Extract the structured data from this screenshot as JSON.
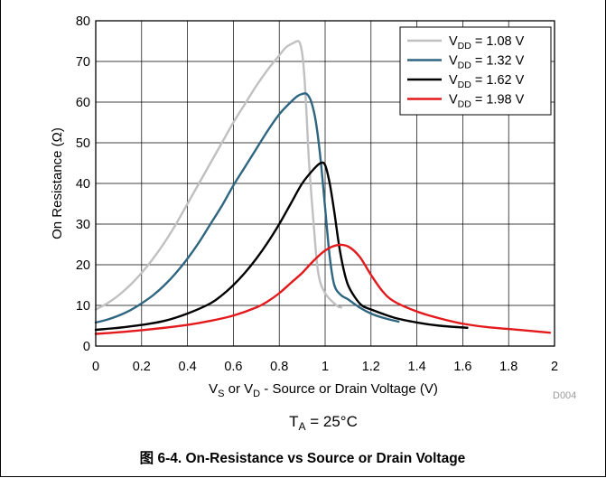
{
  "chart_data": {
    "type": "line",
    "xlabel_parts": [
      "V",
      "S",
      " or V",
      "D",
      " - Source or Drain Voltage (V)"
    ],
    "ylabel": "On Resistance (Ω)",
    "xlim": [
      0,
      2
    ],
    "ylim": [
      0,
      80
    ],
    "xticks": [
      0,
      0.2,
      0.4,
      0.6,
      0.8,
      1,
      1.2,
      1.4,
      1.6,
      1.8,
      2
    ],
    "xtick_labels": [
      "0",
      "0.2",
      "0.4",
      "0.6",
      "0.8",
      "1",
      "1.2",
      "1.4",
      "1.6",
      "1.8",
      "2"
    ],
    "yticks": [
      0,
      10,
      20,
      30,
      40,
      50,
      60,
      70,
      80
    ],
    "ytick_labels": [
      "0",
      "10",
      "20",
      "30",
      "40",
      "50",
      "60",
      "70",
      "80"
    ],
    "grid": true,
    "legend_position": "top-right",
    "figure_code": "D004",
    "condition": {
      "main": "T",
      "sub": "A",
      "rest": " = 25°C"
    },
    "caption": "图 6-4. On-Resistance vs Source or Drain Voltage",
    "series": [
      {
        "legend_main": "V",
        "legend_sub": "DD",
        "legend_rest": " = 1.08 V",
        "color": "#c0c0c0",
        "points": [
          [
            0,
            9
          ],
          [
            0.05,
            10.5
          ],
          [
            0.1,
            12.5
          ],
          [
            0.15,
            15
          ],
          [
            0.2,
            18
          ],
          [
            0.25,
            21.5
          ],
          [
            0.3,
            25.5
          ],
          [
            0.35,
            30
          ],
          [
            0.4,
            35
          ],
          [
            0.45,
            40
          ],
          [
            0.5,
            45
          ],
          [
            0.55,
            50
          ],
          [
            0.6,
            55
          ],
          [
            0.65,
            59.5
          ],
          [
            0.7,
            64
          ],
          [
            0.75,
            68
          ],
          [
            0.8,
            71.5
          ],
          [
            0.83,
            73.5
          ],
          [
            0.86,
            74.5
          ],
          [
            0.88,
            75
          ],
          [
            0.89,
            74.5
          ],
          [
            0.9,
            72
          ],
          [
            0.91,
            66
          ],
          [
            0.92,
            56
          ],
          [
            0.93,
            45
          ],
          [
            0.95,
            30
          ],
          [
            0.97,
            18
          ],
          [
            1.0,
            13
          ],
          [
            1.05,
            10
          ],
          [
            1.07,
            9.5
          ]
        ]
      },
      {
        "legend_main": "V",
        "legend_sub": "DD",
        "legend_rest": " = 1.32 V",
        "color": "#2e6580",
        "points": [
          [
            0,
            5.8
          ],
          [
            0.05,
            6.5
          ],
          [
            0.1,
            7.5
          ],
          [
            0.15,
            8.8
          ],
          [
            0.2,
            10.5
          ],
          [
            0.25,
            12.5
          ],
          [
            0.3,
            15
          ],
          [
            0.35,
            18
          ],
          [
            0.4,
            21.5
          ],
          [
            0.45,
            25.5
          ],
          [
            0.5,
            30
          ],
          [
            0.55,
            34.5
          ],
          [
            0.6,
            39.5
          ],
          [
            0.65,
            44
          ],
          [
            0.7,
            48.5
          ],
          [
            0.75,
            53
          ],
          [
            0.8,
            57
          ],
          [
            0.85,
            60
          ],
          [
            0.88,
            61.5
          ],
          [
            0.9,
            62
          ],
          [
            0.92,
            62
          ],
          [
            0.94,
            60
          ],
          [
            0.96,
            55
          ],
          [
            0.98,
            46
          ],
          [
            1.0,
            34
          ],
          [
            1.02,
            22
          ],
          [
            1.04,
            15
          ],
          [
            1.07,
            12.5
          ],
          [
            1.1,
            11.5
          ],
          [
            1.15,
            9.5
          ],
          [
            1.2,
            8
          ],
          [
            1.25,
            7
          ],
          [
            1.32,
            6
          ]
        ]
      },
      {
        "legend_main": "V",
        "legend_sub": "DD",
        "legend_rest": " = 1.62 V",
        "color": "#000000",
        "points": [
          [
            0,
            4
          ],
          [
            0.1,
            4.5
          ],
          [
            0.2,
            5.2
          ],
          [
            0.3,
            6.2
          ],
          [
            0.4,
            8
          ],
          [
            0.5,
            10.5
          ],
          [
            0.55,
            12.5
          ],
          [
            0.6,
            15
          ],
          [
            0.65,
            18
          ],
          [
            0.7,
            21.5
          ],
          [
            0.75,
            25.5
          ],
          [
            0.8,
            30
          ],
          [
            0.85,
            35
          ],
          [
            0.9,
            40
          ],
          [
            0.95,
            43.5
          ],
          [
            0.98,
            45
          ],
          [
            1.0,
            44.5
          ],
          [
            1.02,
            40
          ],
          [
            1.04,
            33
          ],
          [
            1.06,
            25
          ],
          [
            1.08,
            19
          ],
          [
            1.1,
            15
          ],
          [
            1.13,
            12
          ],
          [
            1.16,
            10
          ],
          [
            1.2,
            9
          ],
          [
            1.3,
            7
          ],
          [
            1.4,
            5.8
          ],
          [
            1.5,
            5
          ],
          [
            1.62,
            4.5
          ]
        ]
      },
      {
        "legend_main": "V",
        "legend_sub": "DD",
        "legend_rest": " = 1.98 V",
        "color": "#e3191c",
        "points": [
          [
            0,
            3
          ],
          [
            0.1,
            3.4
          ],
          [
            0.2,
            3.9
          ],
          [
            0.3,
            4.5
          ],
          [
            0.4,
            5.2
          ],
          [
            0.5,
            6.2
          ],
          [
            0.6,
            7.5
          ],
          [
            0.7,
            9.5
          ],
          [
            0.75,
            11
          ],
          [
            0.8,
            13
          ],
          [
            0.85,
            15.5
          ],
          [
            0.9,
            18
          ],
          [
            0.95,
            21
          ],
          [
            1.0,
            23.5
          ],
          [
            1.05,
            24.8
          ],
          [
            1.1,
            24.5
          ],
          [
            1.15,
            22
          ],
          [
            1.2,
            17.5
          ],
          [
            1.25,
            13.5
          ],
          [
            1.3,
            11
          ],
          [
            1.4,
            8.5
          ],
          [
            1.5,
            6.8
          ],
          [
            1.6,
            5.5
          ],
          [
            1.7,
            4.7
          ],
          [
            1.8,
            4.2
          ],
          [
            1.9,
            3.7
          ],
          [
            1.98,
            3.3
          ]
        ]
      }
    ]
  }
}
